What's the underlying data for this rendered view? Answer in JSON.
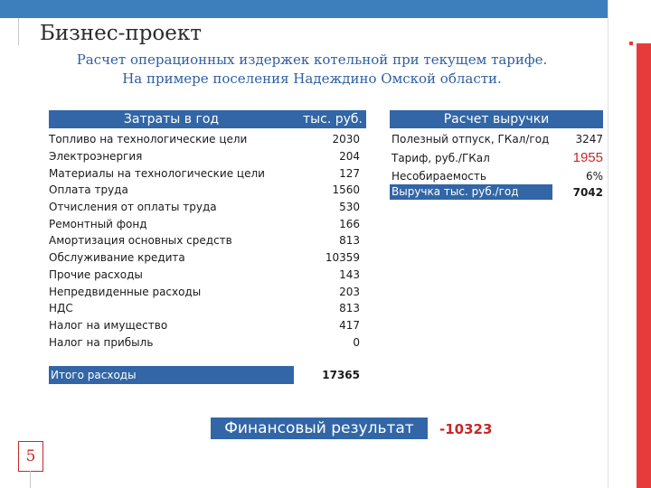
{
  "slide": {
    "title": "Бизнес-проект",
    "subtitle_line1": "Расчет операционных издержек котельной при текущем тарифе.",
    "subtitle_line2": "На примере поселения Надеждино Омской области.",
    "page_number": "5"
  },
  "costs": {
    "header_name": "Затраты в год",
    "header_unit": "тыс. руб.",
    "rows": [
      {
        "name": "Топливо на технологические цели",
        "value": "2030"
      },
      {
        "name": "Электроэнергия",
        "value": "204"
      },
      {
        "name": "Материалы на технологические цели",
        "value": "127"
      },
      {
        "name": "Оплата труда",
        "value": "1560"
      },
      {
        "name": "Отчисления от оплаты труда",
        "value": "530"
      },
      {
        "name": "Ремонтный фонд",
        "value": "166"
      },
      {
        "name": "Амортизация основных средств",
        "value": "813"
      },
      {
        "name": "Обслуживание кредита",
        "value": "10359"
      },
      {
        "name": "Прочие расходы",
        "value": "143"
      },
      {
        "name": "Непредвиденные расходы",
        "value": "203"
      },
      {
        "name": "НДС",
        "value": "813"
      },
      {
        "name": "Налог на имущество",
        "value": "417"
      },
      {
        "name": "Налог на прибыль",
        "value": "0"
      }
    ],
    "total_label": "Итого расходы",
    "total_value": "17365"
  },
  "revenue": {
    "header": "Расчет выручки",
    "rows": [
      {
        "name": "Полезный отпуск, ГКал/год",
        "value": "3247"
      },
      {
        "name": "Тариф, руб./ГКал",
        "value": "1955"
      },
      {
        "name": "Несобираемость",
        "value": "6%"
      },
      {
        "name": "Выручка тыс. руб./год",
        "value": "7042"
      }
    ]
  },
  "result": {
    "label": "Финансовый результат",
    "value": "-10323"
  },
  "colors": {
    "accent_blue": "#3266a6",
    "accent_red": "#e73b3b",
    "text_red": "#c62828"
  }
}
